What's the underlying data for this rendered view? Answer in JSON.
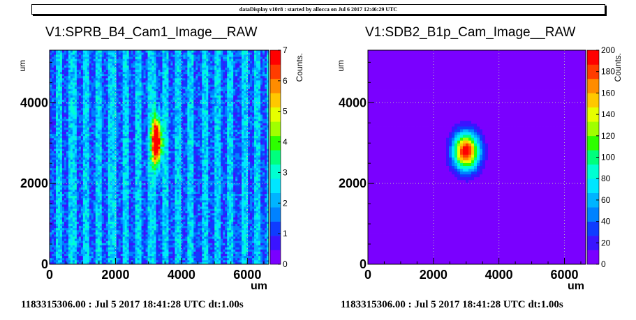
{
  "banner": "dataDisplay v10r8 : started by allocca on Jul  6 2017 12:46:29 UTC",
  "chart_data": [
    {
      "type": "heatmap",
      "title": "V1:SPRB_B4_Cam1_Image__RAW",
      "xlabel": "um",
      "ylabel": "um",
      "zlabel": "Counts.",
      "xlim": [
        0,
        6650
      ],
      "ylim": [
        0,
        5300
      ],
      "zlim": [
        0,
        7
      ],
      "xticks": [
        "0",
        "2000",
        "4000",
        "6000"
      ],
      "yticks": [
        "0",
        "2000",
        "4000"
      ],
      "zticks": [
        "0",
        "1",
        "2",
        "3",
        "4",
        "5",
        "6",
        "7"
      ],
      "zticks_values": [
        0,
        1,
        2,
        3,
        4,
        5,
        6,
        7
      ],
      "features": {
        "background": "vertical stripe pattern",
        "stripe_period_um": 400,
        "spot_center_um": [
          3250,
          3050
        ],
        "spot_sigma_um": [
          100,
          400
        ],
        "spot_peak_counts": 7
      },
      "footer": "1183315306.00 : Jul  5 2017 18:41:28 UTC dt:1.00s"
    },
    {
      "type": "heatmap",
      "title": "V1:SDB2_B1p_Cam_Image__RAW",
      "xlabel": "um",
      "ylabel": "um",
      "zlabel": "Counts.",
      "xlim": [
        0,
        6650
      ],
      "ylim": [
        0,
        5300
      ],
      "zlim": [
        0,
        200
      ],
      "xticks": [
        "0",
        "2000",
        "4000",
        "6000"
      ],
      "yticks": [
        "0",
        "2000",
        "4000"
      ],
      "zticks": [
        "0",
        "20",
        "40",
        "60",
        "80",
        "100",
        "120",
        "140",
        "160",
        "180",
        "200"
      ],
      "zticks_values": [
        0,
        20,
        40,
        60,
        80,
        100,
        120,
        140,
        160,
        180,
        200
      ],
      "features": {
        "background": "uniform zero",
        "spot_center_um": [
          3000,
          2800
        ],
        "spot_sigma_um": [
          280,
          320
        ],
        "spot_peak_counts": 200
      },
      "footer": "1183315306.00 : Jul  5 2017 18:41:28 UTC dt:1.00s"
    }
  ],
  "colors": {
    "palette": [
      "#7a00ff",
      "#3a14ff",
      "#0f3cff",
      "#0082ff",
      "#00b4ff",
      "#00e6ff",
      "#00ffd2",
      "#00ff7d",
      "#2dff00",
      "#a0ff00",
      "#e6ff00",
      "#ffc800",
      "#ff8c00",
      "#ff3c00",
      "#ff0000"
    ]
  }
}
